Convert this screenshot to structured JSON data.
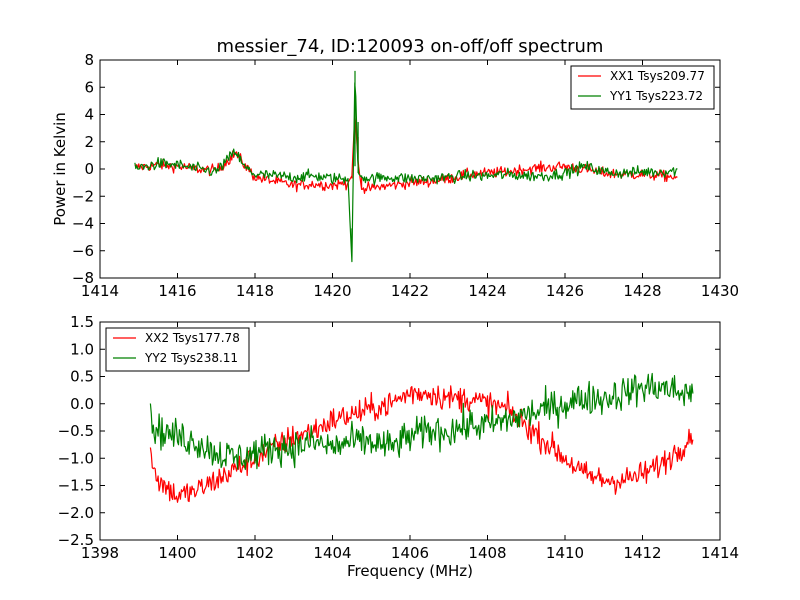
{
  "chart_data": [
    {
      "type": "line",
      "title": "messier_74, ID:120093 on-off/off spectrum",
      "xlabel": "",
      "ylabel": "Power in Kelvin",
      "xlim": [
        1414,
        1430
      ],
      "ylim": [
        -8,
        8
      ],
      "xticks": [
        1414,
        1416,
        1418,
        1420,
        1422,
        1424,
        1426,
        1428,
        1430
      ],
      "yticks": [
        -8,
        -6,
        -4,
        -2,
        0,
        2,
        4,
        6,
        8
      ],
      "x_range": [
        1414.9,
        1428.9
      ],
      "legend_position": "top-right",
      "grid": false,
      "series": [
        {
          "name": "XX1 Tsys209.77",
          "color": "#ff0000",
          "x": [
            1414.9,
            1415.5,
            1416.0,
            1416.5,
            1417.0,
            1417.3,
            1417.5,
            1417.7,
            1418.0,
            1418.5,
            1419.0,
            1419.5,
            1420.0,
            1420.4,
            1420.5,
            1420.58,
            1420.66,
            1420.75,
            1421.0,
            1421.5,
            1422.0,
            1422.5,
            1423.0,
            1423.5,
            1424.0,
            1424.5,
            1425.0,
            1425.5,
            1426.0,
            1426.5,
            1427.0,
            1427.5,
            1428.0,
            1428.5,
            1428.9
          ],
          "values": [
            0.1,
            0.3,
            0.2,
            0.0,
            -0.1,
            0.6,
            1.2,
            0.4,
            -0.6,
            -0.9,
            -1.2,
            -1.1,
            -1.2,
            -1.0,
            -0.5,
            4.2,
            0.5,
            -1.5,
            -1.4,
            -1.2,
            -1.0,
            -0.9,
            -0.7,
            -0.4,
            -0.3,
            -0.2,
            0.0,
            0.1,
            0.2,
            0.0,
            -0.3,
            -0.4,
            -0.4,
            -0.5,
            -0.6
          ],
          "noise": 0.28
        },
        {
          "name": "YY1 Tsys223.72",
          "color": "#008000",
          "x": [
            1414.9,
            1415.5,
            1416.0,
            1416.5,
            1417.0,
            1417.3,
            1417.5,
            1417.7,
            1418.0,
            1418.5,
            1419.0,
            1419.5,
            1420.0,
            1420.4,
            1420.5,
            1420.58,
            1420.66,
            1420.75,
            1421.0,
            1421.5,
            1422.0,
            1422.5,
            1423.0,
            1423.5,
            1424.0,
            1424.5,
            1425.0,
            1425.5,
            1426.0,
            1426.5,
            1427.0,
            1427.5,
            1428.0,
            1428.5,
            1428.9
          ],
          "values": [
            0.0,
            0.4,
            0.3,
            0.0,
            -0.2,
            0.7,
            1.3,
            0.2,
            -0.4,
            -0.5,
            -0.6,
            -0.5,
            -0.7,
            -0.7,
            -6.8,
            7.2,
            -0.3,
            -0.6,
            -0.7,
            -0.6,
            -0.7,
            -0.7,
            -0.6,
            -0.5,
            -0.5,
            -0.4,
            -0.5,
            -0.5,
            -0.3,
            0.2,
            -0.2,
            -0.3,
            -0.2,
            -0.2,
            -0.1
          ],
          "noise": 0.3
        }
      ]
    },
    {
      "type": "line",
      "title": "",
      "xlabel": "Frequency (MHz)",
      "ylabel": "",
      "xlim": [
        1398,
        1414
      ],
      "ylim": [
        -2.5,
        1.5
      ],
      "xticks": [
        1398,
        1400,
        1402,
        1404,
        1406,
        1408,
        1410,
        1412,
        1414
      ],
      "yticks": [
        -2.5,
        -2.0,
        -1.5,
        -1.0,
        -0.5,
        0.0,
        0.5,
        1.0,
        1.5
      ],
      "x_range": [
        1399.3,
        1413.3
      ],
      "legend_position": "top-left",
      "grid": false,
      "series": [
        {
          "name": "XX2 Tsys177.78",
          "color": "#ff0000",
          "x": [
            1399.3,
            1399.5,
            1400.0,
            1400.5,
            1401.0,
            1401.5,
            1402.0,
            1402.5,
            1403.0,
            1403.5,
            1404.0,
            1404.5,
            1405.0,
            1405.5,
            1406.0,
            1406.5,
            1407.0,
            1407.5,
            1408.0,
            1408.5,
            1409.0,
            1409.5,
            1410.0,
            1410.5,
            1411.0,
            1411.5,
            1412.0,
            1412.5,
            1413.0,
            1413.3
          ],
          "values": [
            -0.9,
            -1.4,
            -1.7,
            -1.6,
            -1.4,
            -1.2,
            -1.0,
            -0.8,
            -0.6,
            -0.5,
            -0.3,
            -0.2,
            -0.1,
            0.0,
            0.2,
            0.2,
            0.1,
            0.1,
            0.0,
            -0.1,
            -0.4,
            -0.7,
            -1.0,
            -1.3,
            -1.4,
            -1.4,
            -1.3,
            -1.1,
            -0.8,
            -0.5
          ],
          "noise": 0.17
        },
        {
          "name": "YY2 Tsys238.11",
          "color": "#008000",
          "x": [
            1399.3,
            1399.5,
            1400.0,
            1400.5,
            1401.0,
            1401.5,
            1402.0,
            1402.5,
            1403.0,
            1403.5,
            1404.0,
            1404.5,
            1405.0,
            1405.5,
            1406.0,
            1406.5,
            1407.0,
            1407.5,
            1408.0,
            1408.5,
            1409.0,
            1409.5,
            1410.0,
            1410.5,
            1411.0,
            1411.5,
            1412.0,
            1412.5,
            1413.0,
            1413.3
          ],
          "values": [
            -0.3,
            -0.5,
            -0.6,
            -0.7,
            -0.9,
            -1.0,
            -0.9,
            -0.8,
            -0.8,
            -0.7,
            -0.8,
            -0.7,
            -0.7,
            -0.8,
            -0.6,
            -0.5,
            -0.5,
            -0.4,
            -0.4,
            -0.3,
            -0.2,
            -0.1,
            0.0,
            0.1,
            0.1,
            0.2,
            0.3,
            0.3,
            0.2,
            0.2
          ],
          "noise": 0.22
        }
      ]
    }
  ]
}
